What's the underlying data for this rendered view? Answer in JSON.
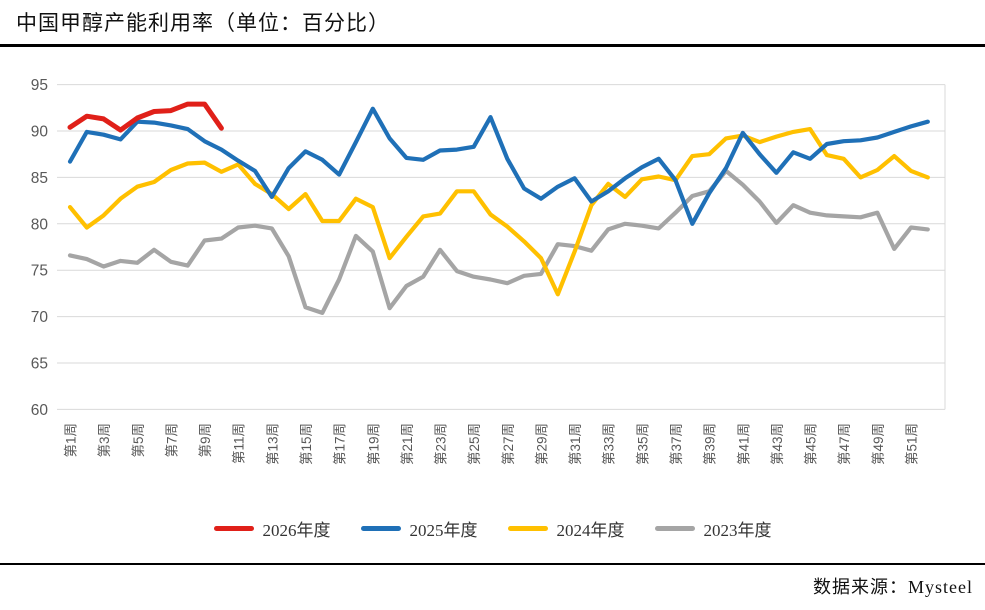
{
  "page": {
    "title": "中国甲醇产能利用率（单位：百分比）",
    "source": "数据来源：Mysteel"
  },
  "chart_data": {
    "type": "line",
    "title": "中国甲醇产能利用率（单位：百分比）",
    "xlabel": "",
    "ylabel": "",
    "ylim": [
      60,
      95
    ],
    "y_tick_interval": 5,
    "y_tick_labels": [
      "60",
      "65",
      "70",
      "75",
      "80",
      "85",
      "90",
      "95"
    ],
    "x_tick_labels": [
      "第1周",
      "第3周",
      "第5周",
      "第7周",
      "第9周",
      "第11周",
      "第13周",
      "第15周",
      "第17周",
      "第19周",
      "第21周",
      "第23周",
      "第25周",
      "第27周",
      "第29周",
      "第31周",
      "第33周",
      "第35周",
      "第37周",
      "第39周",
      "第41周",
      "第43周",
      "第45周",
      "第47周",
      "第49周",
      "第51周"
    ],
    "weeks_total": 52,
    "grid": true,
    "legend_position": "bottom",
    "gridline_color": "#D9D9D9",
    "axis_label_color": "#595959",
    "series": [
      {
        "name": "2026年度",
        "color": "#E02019",
        "start_week": 1,
        "values": [
          90.4,
          91.6,
          91.3,
          90.1,
          91.4,
          92.1,
          92.2,
          92.9,
          92.9,
          90.3
        ]
      },
      {
        "name": "2025年度",
        "color": "#1F70B7",
        "start_week": 1,
        "values": [
          86.7,
          89.9,
          89.6,
          89.1,
          91.0,
          90.9,
          90.6,
          90.2,
          88.9,
          88.0,
          86.8,
          85.7,
          82.9,
          86.0,
          87.8,
          86.9,
          85.3,
          88.8,
          92.4,
          89.2,
          87.1,
          86.9,
          87.9,
          88.0,
          88.3,
          91.5,
          87.0,
          83.8,
          82.7,
          84.0,
          84.9,
          82.4,
          83.5,
          84.9,
          86.1,
          87.0,
          84.7,
          80.0,
          83.3,
          86.0,
          89.8,
          87.5,
          85.5,
          87.7,
          87.0,
          88.6,
          88.9,
          89.0,
          89.3,
          89.9,
          90.5,
          91.0
        ]
      },
      {
        "name": "2024年度",
        "color": "#FFC000",
        "start_week": 1,
        "values": [
          81.8,
          79.6,
          80.9,
          82.7,
          84.0,
          84.5,
          85.8,
          86.5,
          86.6,
          85.6,
          86.4,
          84.3,
          83.2,
          81.6,
          83.2,
          80.3,
          80.3,
          82.7,
          81.8,
          76.3,
          78.6,
          80.8,
          81.1,
          83.5,
          83.5,
          81.0,
          79.7,
          78.1,
          76.3,
          72.4,
          77.0,
          82.0,
          84.3,
          82.9,
          84.8,
          85.1,
          84.7,
          87.3,
          87.5,
          89.2,
          89.5,
          88.8,
          89.4,
          89.9,
          90.2,
          87.4,
          87.0,
          85.0,
          85.8,
          87.3,
          85.7,
          85.0
        ]
      },
      {
        "name": "2023年度",
        "color": "#A5A5A5",
        "start_week": 1,
        "values": [
          76.6,
          76.2,
          75.4,
          76.0,
          75.8,
          77.2,
          75.9,
          75.5,
          78.2,
          78.4,
          79.6,
          79.8,
          79.5,
          76.5,
          71.0,
          70.4,
          74.0,
          78.7,
          77.0,
          70.9,
          73.3,
          74.3,
          77.2,
          74.9,
          74.3,
          74.0,
          73.6,
          74.4,
          74.6,
          77.8,
          77.6,
          77.1,
          79.4,
          80.0,
          79.8,
          79.5,
          81.2,
          83.0,
          83.5,
          85.7,
          84.2,
          82.4,
          80.1,
          82.0,
          81.2,
          80.9,
          80.8,
          80.7,
          81.2,
          77.3,
          79.6,
          79.4
        ]
      }
    ]
  }
}
